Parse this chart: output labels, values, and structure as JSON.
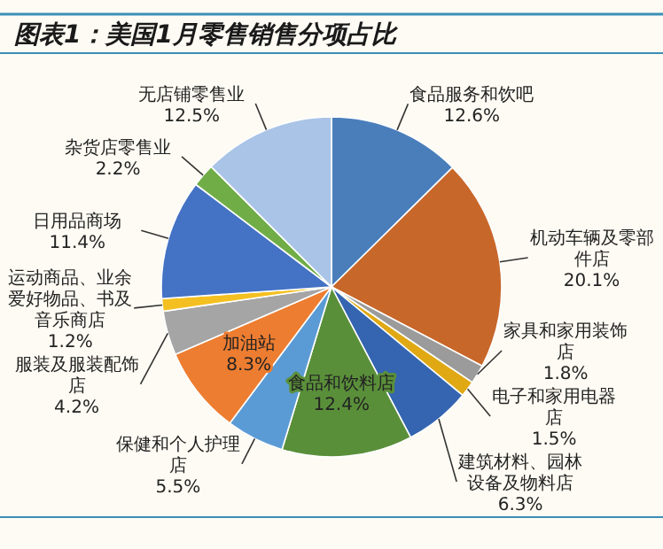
{
  "chart_data": {
    "type": "pie",
    "title": "图表1：美国1月零售销售分项占比",
    "categories": [
      "食品服务和饮吧",
      "机动车辆及零部件店",
      "家具和家用装饰店",
      "电子和家用电器店",
      "建筑材料、园林设备及物料店",
      "食品和饮料店",
      "保健和个人护理店",
      "加油站",
      "服装及服装配饰店",
      "运动商品、业余爱好物品、书及音乐商店",
      "日用品商场",
      "杂货店零售业",
      "无店铺零售业"
    ],
    "values": [
      12.6,
      20.1,
      1.8,
      1.5,
      6.3,
      12.4,
      5.5,
      8.3,
      4.2,
      1.2,
      11.4,
      2.2,
      12.5
    ],
    "value_labels": [
      "12.6%",
      "20.1%",
      "1.8%",
      "1.5%",
      "6.3%",
      "12.4%",
      "5.5%",
      "8.3%",
      "4.2%",
      "1.2%",
      "11.4%",
      "2.2%",
      "12.5%"
    ],
    "colors": [
      "#4a7ebb",
      "#c8672a",
      "#9b9b9b",
      "#e0a914",
      "#3565b0",
      "#5a8f3a",
      "#5b9bd5",
      "#ed7d31",
      "#a5a5a5",
      "#f4c021",
      "#4472c4",
      "#70ad47",
      "#a9c4e6"
    ]
  }
}
